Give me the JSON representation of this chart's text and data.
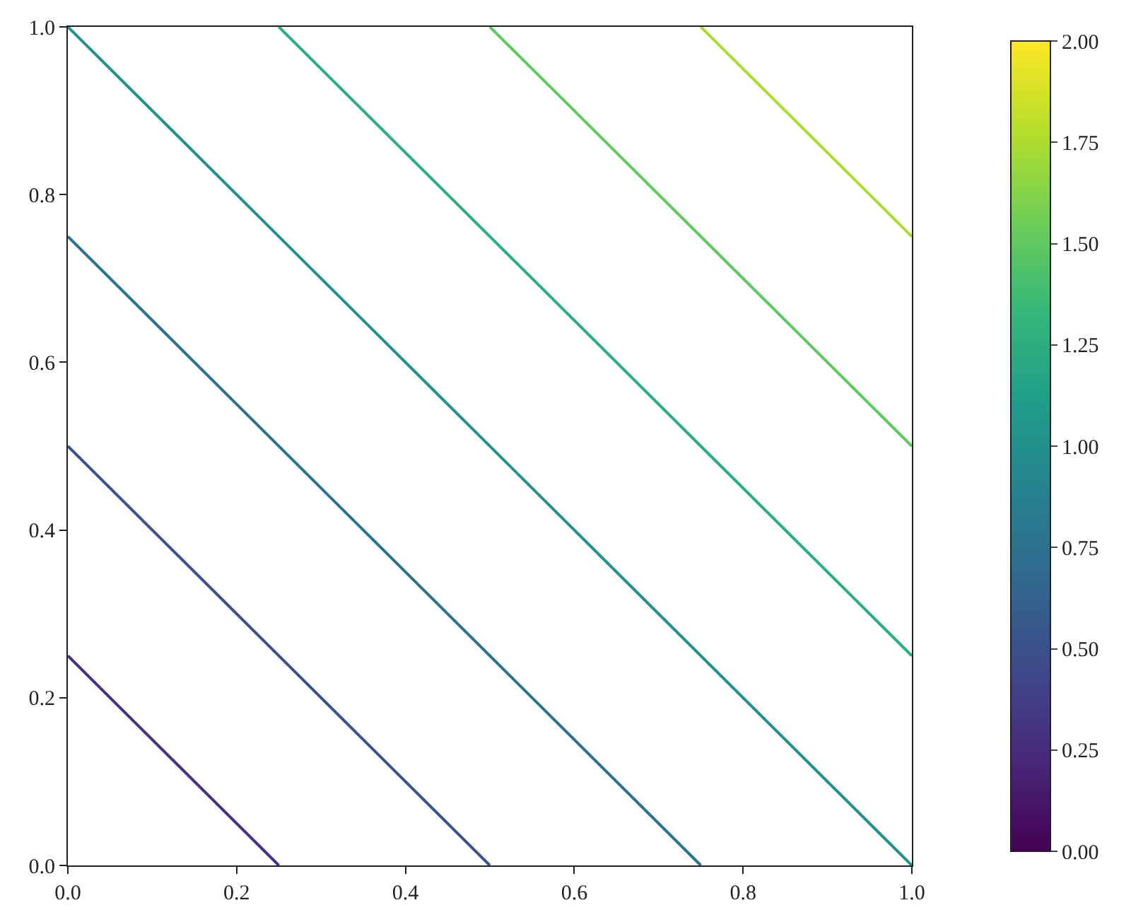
{
  "chart_data": {
    "type": "line",
    "xlim": [
      0,
      1
    ],
    "ylim": [
      0,
      1
    ],
    "xticks": [
      {
        "value": 0,
        "label": "0.0"
      },
      {
        "value": 0.2,
        "label": "0.2"
      },
      {
        "value": 0.4,
        "label": "0.4"
      },
      {
        "value": 0.6,
        "label": "0.6"
      },
      {
        "value": 0.8,
        "label": "0.8"
      },
      {
        "value": 1,
        "label": "1.0"
      }
    ],
    "yticks": [
      {
        "value": 0,
        "label": "0.0"
      },
      {
        "value": 0.2,
        "label": "0.2"
      },
      {
        "value": 0.4,
        "label": "0.4"
      },
      {
        "value": 0.6,
        "label": "0.6"
      },
      {
        "value": 0.8,
        "label": "0.8"
      },
      {
        "value": 1,
        "label": "1.0"
      }
    ],
    "clim": [
      0,
      2
    ],
    "cticks": [
      {
        "value": 0,
        "label": "0.00"
      },
      {
        "value": 0.25,
        "label": "0.25"
      },
      {
        "value": 0.5,
        "label": "0.50"
      },
      {
        "value": 0.75,
        "label": "0.75"
      },
      {
        "value": 1,
        "label": "1.00"
      },
      {
        "value": 1.25,
        "label": "1.25"
      },
      {
        "value": 1.5,
        "label": "1.50"
      },
      {
        "value": 1.75,
        "label": "1.75"
      },
      {
        "value": 2,
        "label": "2.00"
      }
    ],
    "marker": "none",
    "line_style": "solid",
    "series": [
      {
        "color": "#46327e",
        "x": [
          0,
          0.25
        ],
        "values": [
          0.25,
          0
        ]
      },
      {
        "color": "#3b528b",
        "x": [
          0,
          0.5
        ],
        "values": [
          0.5,
          0
        ]
      },
      {
        "color": "#2c728e",
        "x": [
          0,
          0.75
        ],
        "values": [
          0.75,
          0
        ]
      },
      {
        "color": "#21918c",
        "x": [
          0,
          1
        ],
        "values": [
          1,
          0
        ]
      },
      {
        "color": "#28ae80",
        "x": [
          0.25,
          1
        ],
        "values": [
          1,
          0.25
        ]
      },
      {
        "color": "#5ec962",
        "x": [
          0.5,
          1
        ],
        "values": [
          1,
          0.5
        ]
      },
      {
        "color": "#addc30",
        "x": [
          0.75,
          1
        ],
        "values": [
          1,
          0.75
        ]
      }
    ]
  }
}
